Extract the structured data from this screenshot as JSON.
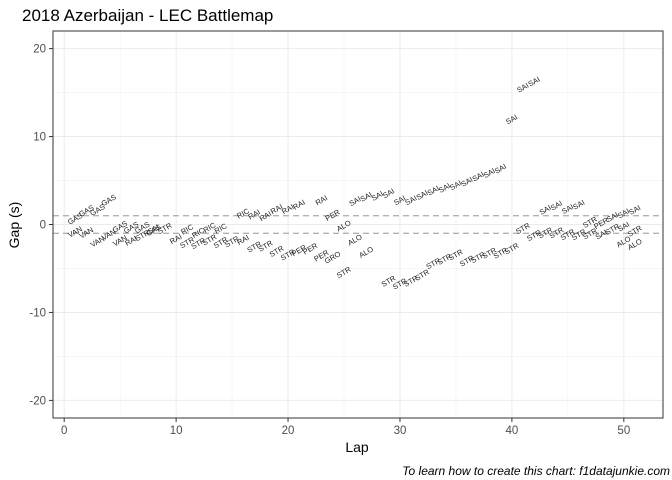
{
  "chart_data": {
    "type": "scatter",
    "title": "2018 Azerbaijan - LEC Battlemap",
    "xlabel": "Lap",
    "ylabel": "Gap (s)",
    "caption": "To learn how to create this chart: f1datajunkie.com",
    "xlim": [
      -1,
      53.5
    ],
    "ylim": [
      -22,
      22
    ],
    "xticks": [
      0,
      10,
      20,
      30,
      40,
      50
    ],
    "yticks": [
      -20,
      -10,
      0,
      10,
      20
    ],
    "reference_lines": [
      1,
      -1
    ],
    "grid": true,
    "points": [
      {
        "x": 1,
        "y": 0.6,
        "label": "GAS"
      },
      {
        "x": 1,
        "y": -0.9,
        "label": "VAN"
      },
      {
        "x": 2,
        "y": 1.5,
        "label": "GAS"
      },
      {
        "x": 2,
        "y": -1.0,
        "label": "VAN"
      },
      {
        "x": 3,
        "y": 1.6,
        "label": "GAS"
      },
      {
        "x": 3,
        "y": -2.0,
        "label": "VAN"
      },
      {
        "x": 4,
        "y": 2.7,
        "label": "GAS"
      },
      {
        "x": 4,
        "y": -1.2,
        "label": "VAN"
      },
      {
        "x": 5,
        "y": -1.9,
        "label": "VAN"
      },
      {
        "x": 5,
        "y": -0.3,
        "label": "GAS"
      },
      {
        "x": 6,
        "y": -0.4,
        "label": "GAS"
      },
      {
        "x": 6,
        "y": -1.9,
        "label": "RAI"
      },
      {
        "x": 7,
        "y": -1.3,
        "label": "STR"
      },
      {
        "x": 7,
        "y": -0.4,
        "label": "GAS"
      },
      {
        "x": 8,
        "y": -0.6,
        "label": "SAI"
      },
      {
        "x": 8,
        "y": -0.7,
        "label": "GAS"
      },
      {
        "x": 9,
        "y": -0.5,
        "label": "STR"
      },
      {
        "x": 10,
        "y": -1.7,
        "label": "RAI"
      },
      {
        "x": 11,
        "y": -0.6,
        "label": "RIC"
      },
      {
        "x": 11,
        "y": -2.1,
        "label": "STR"
      },
      {
        "x": 12,
        "y": -1.0,
        "label": "RIC"
      },
      {
        "x": 12,
        "y": -2.2,
        "label": "STR"
      },
      {
        "x": 13,
        "y": -0.4,
        "label": "RIC"
      },
      {
        "x": 13,
        "y": -1.8,
        "label": "STR"
      },
      {
        "x": 14,
        "y": -0.5,
        "label": "RIC"
      },
      {
        "x": 14,
        "y": -2.1,
        "label": "STR"
      },
      {
        "x": 15,
        "y": -2.0,
        "label": "STR"
      },
      {
        "x": 16,
        "y": 1.2,
        "label": "RIC"
      },
      {
        "x": 16,
        "y": -1.8,
        "label": "RAI"
      },
      {
        "x": 17,
        "y": 1.1,
        "label": "RAI"
      },
      {
        "x": 17,
        "y": -2.6,
        "label": "STR"
      },
      {
        "x": 18,
        "y": 0.9,
        "label": "RAI"
      },
      {
        "x": 18,
        "y": -2.5,
        "label": "STR"
      },
      {
        "x": 19,
        "y": 1.7,
        "label": "RAI"
      },
      {
        "x": 19,
        "y": -3.1,
        "label": "STR"
      },
      {
        "x": 20,
        "y": 1.7,
        "label": "RAI"
      },
      {
        "x": 20,
        "y": -3.5,
        "label": "STR"
      },
      {
        "x": 21,
        "y": 2.2,
        "label": "RAI"
      },
      {
        "x": 21,
        "y": -3.0,
        "label": "PER"
      },
      {
        "x": 22,
        "y": -2.8,
        "label": "PER"
      },
      {
        "x": 23,
        "y": 2.7,
        "label": "RAI"
      },
      {
        "x": 23,
        "y": -3.6,
        "label": "PER"
      },
      {
        "x": 24,
        "y": 1.0,
        "label": "PER"
      },
      {
        "x": 24,
        "y": -3.8,
        "label": "GRO"
      },
      {
        "x": 25,
        "y": -0.2,
        "label": "ALO"
      },
      {
        "x": 25,
        "y": -5.5,
        "label": "STR"
      },
      {
        "x": 26,
        "y": 2.6,
        "label": "SAI"
      },
      {
        "x": 26,
        "y": -1.8,
        "label": "ALO"
      },
      {
        "x": 27,
        "y": 3.1,
        "label": "SAI"
      },
      {
        "x": 27,
        "y": -3.2,
        "label": "ALO"
      },
      {
        "x": 28,
        "y": 3.2,
        "label": "SAI"
      },
      {
        "x": 29,
        "y": 3.5,
        "label": "SAI"
      },
      {
        "x": 29,
        "y": -6.5,
        "label": "STR"
      },
      {
        "x": 30,
        "y": 2.7,
        "label": "SAI"
      },
      {
        "x": 30,
        "y": -6.8,
        "label": "STR"
      },
      {
        "x": 31,
        "y": 2.7,
        "label": "SAI"
      },
      {
        "x": 31,
        "y": -6.5,
        "label": "STR"
      },
      {
        "x": 32,
        "y": 3.3,
        "label": "SAI"
      },
      {
        "x": 32,
        "y": -5.8,
        "label": "STR"
      },
      {
        "x": 33,
        "y": 3.8,
        "label": "SAI"
      },
      {
        "x": 33,
        "y": -4.5,
        "label": "STR"
      },
      {
        "x": 34,
        "y": 4.1,
        "label": "SAI"
      },
      {
        "x": 34,
        "y": -4.0,
        "label": "STR"
      },
      {
        "x": 35,
        "y": 4.4,
        "label": "SAI"
      },
      {
        "x": 35,
        "y": -3.5,
        "label": "STR"
      },
      {
        "x": 36,
        "y": 4.8,
        "label": "SAI"
      },
      {
        "x": 36,
        "y": -4.2,
        "label": "STR"
      },
      {
        "x": 37,
        "y": 5.4,
        "label": "SAI"
      },
      {
        "x": 37,
        "y": -3.8,
        "label": "STR"
      },
      {
        "x": 38,
        "y": 5.8,
        "label": "SAI"
      },
      {
        "x": 38,
        "y": -3.3,
        "label": "STR"
      },
      {
        "x": 39,
        "y": 6.3,
        "label": "SAI"
      },
      {
        "x": 39,
        "y": -3.3,
        "label": "STR"
      },
      {
        "x": 40,
        "y": 11.9,
        "label": "SAI"
      },
      {
        "x": 40,
        "y": -2.8,
        "label": "STR"
      },
      {
        "x": 41,
        "y": 15.5,
        "label": "SAI"
      },
      {
        "x": 41,
        "y": -0.5,
        "label": "STR"
      },
      {
        "x": 42,
        "y": 16.2,
        "label": "SAI"
      },
      {
        "x": 42,
        "y": -1.3,
        "label": "STR"
      },
      {
        "x": 43,
        "y": 1.6,
        "label": "SAI"
      },
      {
        "x": 43,
        "y": -1.0,
        "label": "STR"
      },
      {
        "x": 44,
        "y": 2.1,
        "label": "SAI"
      },
      {
        "x": 44,
        "y": -1.0,
        "label": "STR"
      },
      {
        "x": 45,
        "y": 1.7,
        "label": "SAI"
      },
      {
        "x": 45,
        "y": -1.2,
        "label": "STR"
      },
      {
        "x": 46,
        "y": 2.2,
        "label": "SAI"
      },
      {
        "x": 46,
        "y": -1.2,
        "label": "STR"
      },
      {
        "x": 47,
        "y": 0.2,
        "label": "STR"
      },
      {
        "x": 47,
        "y": -1.1,
        "label": "STR"
      },
      {
        "x": 48,
        "y": 0.1,
        "label": "PER"
      },
      {
        "x": 48,
        "y": -1.2,
        "label": "SAI"
      },
      {
        "x": 49,
        "y": 0.8,
        "label": "SAI"
      },
      {
        "x": 49,
        "y": -0.6,
        "label": "STR"
      },
      {
        "x": 50,
        "y": 1.2,
        "label": "SAI"
      },
      {
        "x": 50,
        "y": -0.3,
        "label": "SAI"
      },
      {
        "x": 50,
        "y": -2.0,
        "label": "ALO"
      },
      {
        "x": 51,
        "y": 1.6,
        "label": "SAI"
      },
      {
        "x": 51,
        "y": -0.8,
        "label": "STR"
      },
      {
        "x": 51,
        "y": -2.3,
        "label": "ALO"
      }
    ]
  }
}
